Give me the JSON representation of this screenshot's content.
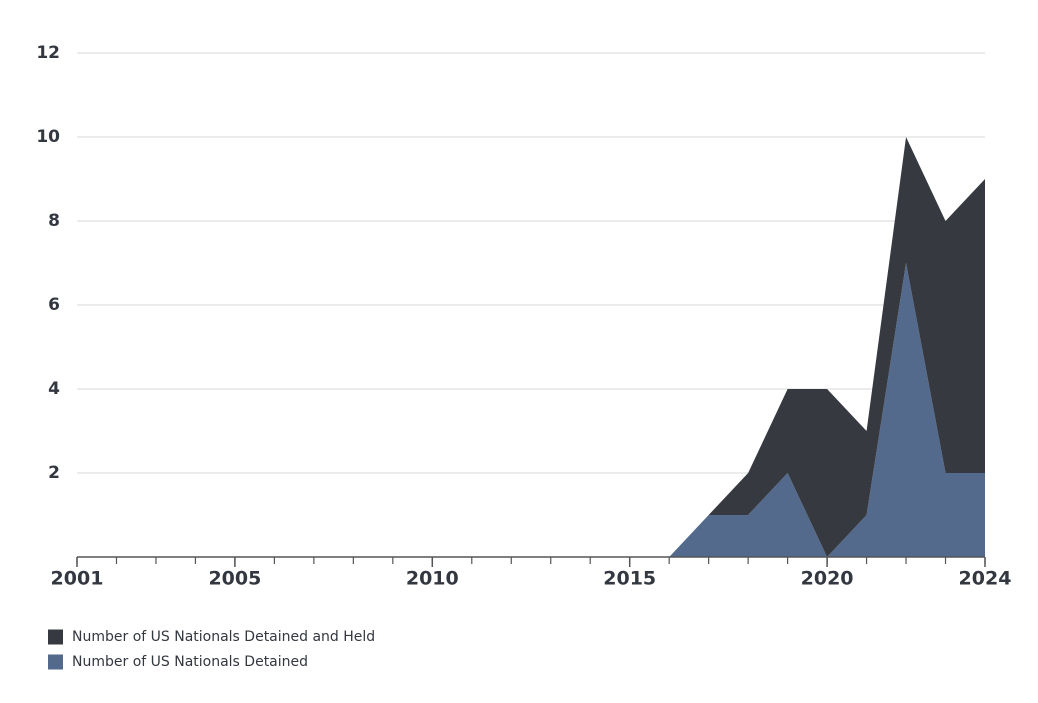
{
  "chart_data": {
    "type": "stacked-area",
    "x": [
      2001,
      2002,
      2003,
      2004,
      2005,
      2006,
      2007,
      2008,
      2009,
      2010,
      2011,
      2012,
      2013,
      2014,
      2015,
      2016,
      2017,
      2018,
      2019,
      2020,
      2021,
      2022,
      2023,
      2024
    ],
    "series": [
      {
        "name": "Number of US Nationals Detained",
        "color": "#536a8c",
        "values": [
          0,
          0,
          0,
          0,
          0,
          0,
          0,
          0,
          0,
          0,
          0,
          0,
          0,
          0,
          0,
          0,
          1,
          1,
          2,
          0,
          1,
          7,
          2,
          2
        ]
      },
      {
        "name": "Number of US Nationals Detained and Held",
        "color": "#363940",
        "values": [
          0,
          0,
          0,
          0,
          0,
          0,
          0,
          0,
          0,
          0,
          0,
          0,
          0,
          0,
          0,
          0,
          0,
          1,
          2,
          4,
          2,
          3,
          6,
          7
        ]
      }
    ],
    "xlim": [
      2001,
      2024
    ],
    "xticks": [
      2001,
      2005,
      2010,
      2015,
      2020,
      2024
    ],
    "ylim": [
      0,
      12
    ],
    "yticks": [
      2,
      4,
      6,
      8,
      10,
      12
    ],
    "grid": true
  }
}
